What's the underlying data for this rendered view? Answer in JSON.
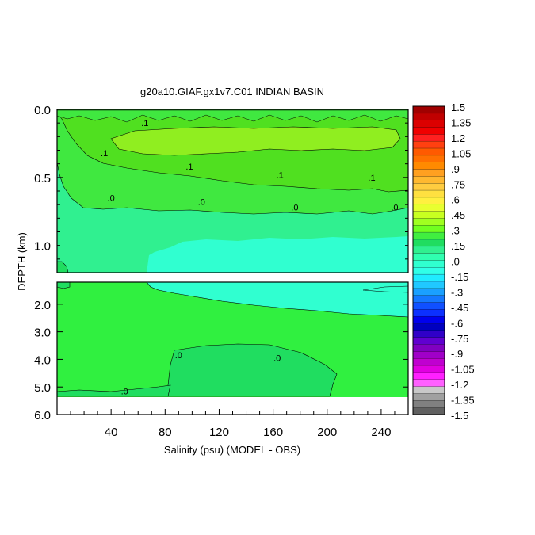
{
  "chart_data": {
    "type": "heatmap",
    "title": "g20a10.GIAF.gx1v7.C01 INDIAN BASIN",
    "xlabel": "Salinity (psu) (MODEL - OBS)",
    "ylabel": "DEPTH (km)",
    "x_ticks": [
      "40",
      "80",
      "120",
      "160",
      "200",
      "240"
    ],
    "x_tick_values": [
      40,
      80,
      120,
      160,
      200,
      240
    ],
    "xlim": [
      0,
      260
    ],
    "upper_panel": {
      "ylim_km": [
        0.0,
        1.2
      ],
      "y_ticks": [
        "0.0",
        "0.5",
        "1.0"
      ],
      "y_tick_values": [
        0.0,
        0.5,
        1.0
      ]
    },
    "lower_panel": {
      "ylim_km": [
        1.2,
        6.0
      ],
      "y_ticks": [
        "2.0",
        "3.0",
        "4.0",
        "5.0",
        "6.0"
      ],
      "y_tick_values": [
        2.0,
        3.0,
        4.0,
        5.0,
        6.0
      ]
    },
    "contour_labels": [
      {
        "text": ".1",
        "x": 65,
        "depth": 0.1
      },
      {
        "text": ".1",
        "x": 35,
        "depth": 0.32
      },
      {
        "text": ".1",
        "x": 98,
        "depth": 0.42
      },
      {
        "text": ".1",
        "x": 165,
        "depth": 0.48
      },
      {
        "text": ".1",
        "x": 233,
        "depth": 0.5
      },
      {
        "text": ".0",
        "x": 40,
        "depth": 0.65
      },
      {
        "text": ".0",
        "x": 107,
        "depth": 0.68
      },
      {
        "text": ".0",
        "x": 176,
        "depth": 0.72
      },
      {
        "text": ".0",
        "x": 250,
        "depth": 0.72
      },
      {
        "text": ".0",
        "x": 90,
        "depth": 3.85
      },
      {
        "text": ".0",
        "x": 163,
        "depth": 3.95
      },
      {
        "text": ".0",
        "x": 50,
        "depth": 5.15
      }
    ],
    "colorbar": {
      "labels": [
        "1.5",
        "1.35",
        "1.2",
        "1.05",
        ".9",
        ".75",
        ".6",
        ".45",
        ".3",
        ".15",
        ".0",
        "-.15",
        "-.3",
        "-.45",
        "-.6",
        "-.75",
        "-.9",
        "-1.05",
        "-1.2",
        "-1.35",
        "-1.5"
      ],
      "colors": [
        "#a00000",
        "#c00000",
        "#dc0000",
        "#f00000",
        "#ff2020",
        "#ff4010",
        "#ff5a00",
        "#ff7000",
        "#ff8a00",
        "#ffa020",
        "#ffb830",
        "#ffcc40",
        "#ffe040",
        "#fff040",
        "#e8ff30",
        "#c8ff20",
        "#a0ff20",
        "#70ff20",
        "#40ee40",
        "#20dd60",
        "#30f090",
        "#30ffb0",
        "#30ffd0",
        "#30ffe8",
        "#20ecff",
        "#20c8ff",
        "#1aa0ff",
        "#1478ff",
        "#1050ff",
        "#0c30ff",
        "#0000ee",
        "#0000c0",
        "#3000c8",
        "#6000d0",
        "#8000c0",
        "#a000c8",
        "#c000d0",
        "#e000e0",
        "#ff20ff",
        "#ff60ff",
        "#c8c8c8",
        "#a0a0a0",
        "#808080",
        "#606060"
      ]
    },
    "colors": {
      "shelf": "#20dd60",
      "zero_to_005": "#30f040",
      "deep_positive": "#40e840",
      "band_01": "#50e020",
      "core_015": "#90ee20",
      "negative": "#30ffd0",
      "outline": "#000000"
    }
  }
}
